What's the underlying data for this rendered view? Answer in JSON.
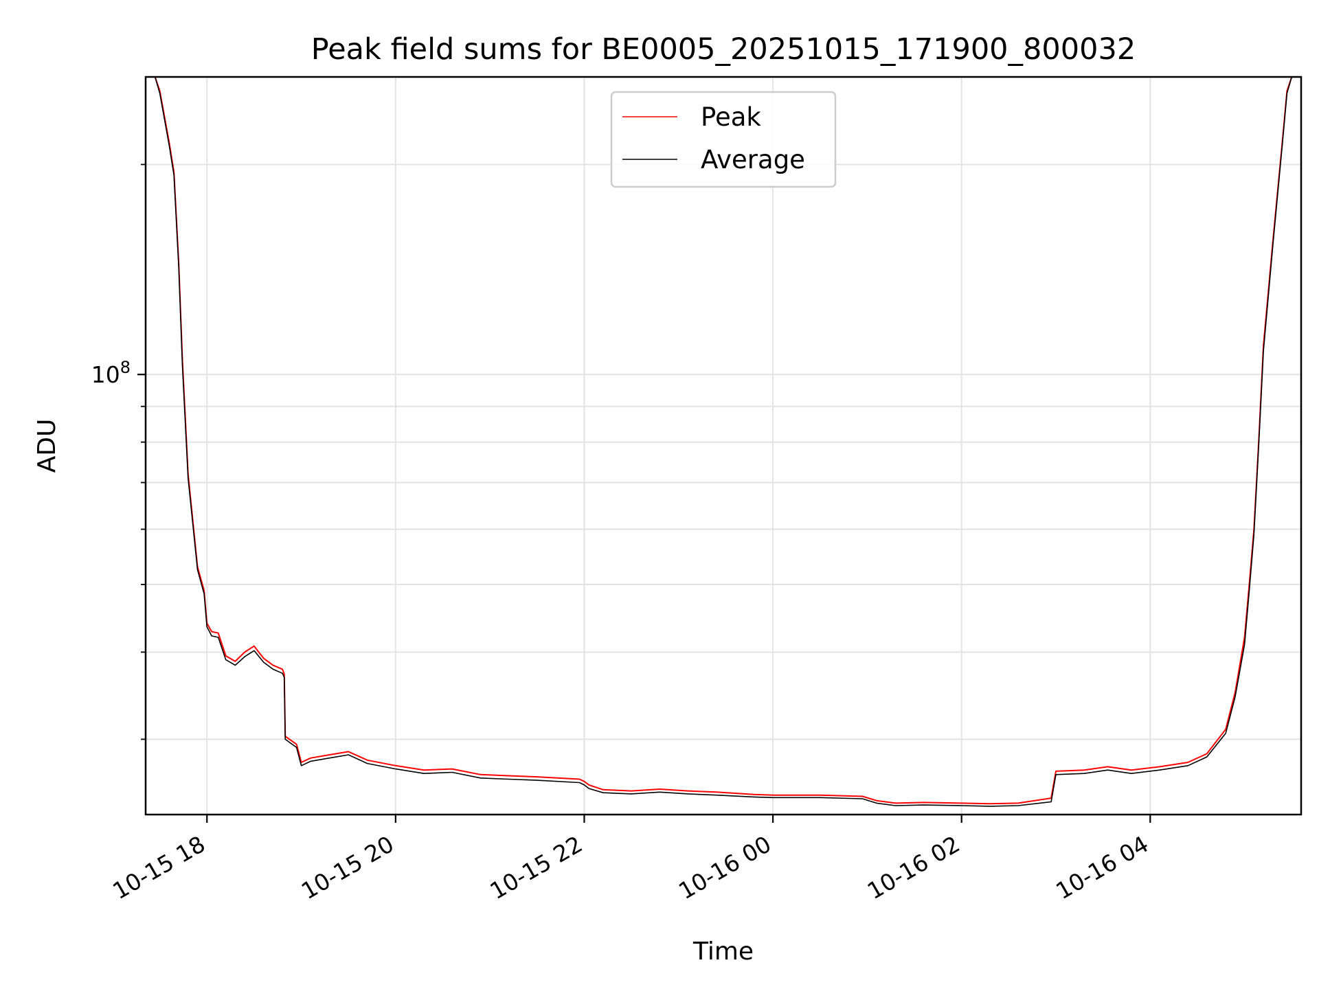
{
  "chart_data": {
    "type": "line",
    "title": "Peak field sums for BE0005_20251015_171900_800032",
    "xlabel": "Time",
    "ylabel": "ADU",
    "yscale": "log",
    "ylim": [
      23400000,
      267000000
    ],
    "xlim": [
      -0.65,
      11.6
    ],
    "x_tick_values": [
      0,
      2,
      4,
      6,
      8,
      10
    ],
    "x_tick_labels": [
      "10-15 18",
      "10-15 20",
      "10-15 22",
      "10-16 00",
      "10-16 02",
      "10-16 04"
    ],
    "y_major_tick_values": [
      100000000
    ],
    "y_major_tick_base": "10",
    "y_major_tick_exp": "8",
    "y_minor_tick_values": [
      30000000,
      40000000,
      50000000,
      60000000,
      70000000,
      80000000,
      90000000,
      200000000
    ],
    "x_unit": "hours since 10-15 18:00",
    "grid": true,
    "legend_position": "top-center",
    "series": [
      {
        "name": "Peak",
        "color": "#ff0000",
        "points": [
          [
            -0.55,
            267000000
          ],
          [
            -0.5,
            255000000
          ],
          [
            -0.4,
            215000000
          ],
          [
            -0.35,
            195000000
          ],
          [
            -0.3,
            145000000
          ],
          [
            -0.26,
            105000000
          ],
          [
            -0.2,
            72000000
          ],
          [
            -0.1,
            53000000
          ],
          [
            -0.03,
            49000000
          ],
          [
            0.0,
            44000000
          ],
          [
            0.05,
            42800000
          ],
          [
            0.12,
            42600000
          ],
          [
            0.2,
            39500000
          ],
          [
            0.3,
            38800000
          ],
          [
            0.4,
            40000000
          ],
          [
            0.5,
            40800000
          ],
          [
            0.6,
            39200000
          ],
          [
            0.7,
            38300000
          ],
          [
            0.8,
            37800000
          ],
          [
            0.82,
            37200000
          ],
          [
            0.83,
            30300000
          ],
          [
            0.95,
            29500000
          ],
          [
            1.0,
            27800000
          ],
          [
            1.1,
            28200000
          ],
          [
            1.3,
            28500000
          ],
          [
            1.5,
            28800000
          ],
          [
            1.7,
            28000000
          ],
          [
            2.0,
            27500000
          ],
          [
            2.3,
            27100000
          ],
          [
            2.6,
            27200000
          ],
          [
            2.9,
            26700000
          ],
          [
            3.2,
            26600000
          ],
          [
            3.5,
            26500000
          ],
          [
            3.95,
            26300000
          ],
          [
            4.0,
            26100000
          ],
          [
            4.05,
            25800000
          ],
          [
            4.2,
            25400000
          ],
          [
            4.5,
            25300000
          ],
          [
            4.8,
            25450000
          ],
          [
            5.1,
            25300000
          ],
          [
            5.4,
            25200000
          ],
          [
            5.8,
            25000000
          ],
          [
            6.0,
            24950000
          ],
          [
            6.5,
            24950000
          ],
          [
            6.95,
            24850000
          ],
          [
            7.1,
            24500000
          ],
          [
            7.3,
            24300000
          ],
          [
            7.6,
            24350000
          ],
          [
            8.0,
            24300000
          ],
          [
            8.3,
            24250000
          ],
          [
            8.6,
            24300000
          ],
          [
            8.95,
            24700000
          ],
          [
            9.0,
            27000000
          ],
          [
            9.3,
            27100000
          ],
          [
            9.55,
            27400000
          ],
          [
            9.8,
            27100000
          ],
          [
            10.1,
            27400000
          ],
          [
            10.4,
            27800000
          ],
          [
            10.6,
            28600000
          ],
          [
            10.8,
            31000000
          ],
          [
            10.9,
            35000000
          ],
          [
            11.0,
            42000000
          ],
          [
            11.05,
            50000000
          ],
          [
            11.1,
            60000000
          ],
          [
            11.15,
            80000000
          ],
          [
            11.2,
            110000000
          ],
          [
            11.3,
            155000000
          ],
          [
            11.4,
            215000000
          ],
          [
            11.45,
            255000000
          ],
          [
            11.5,
            267000000
          ],
          [
            11.6,
            267000000
          ]
        ]
      },
      {
        "name": "Average",
        "color": "#000000",
        "points": [
          [
            -0.55,
            267000000
          ],
          [
            -0.5,
            253000000
          ],
          [
            -0.4,
            213000000
          ],
          [
            -0.35,
            193000000
          ],
          [
            -0.3,
            143000000
          ],
          [
            -0.26,
            103000000
          ],
          [
            -0.2,
            71000000
          ],
          [
            -0.1,
            52500000
          ],
          [
            -0.03,
            48500000
          ],
          [
            0.0,
            43500000
          ],
          [
            0.05,
            42200000
          ],
          [
            0.12,
            42000000
          ],
          [
            0.2,
            39000000
          ],
          [
            0.3,
            38300000
          ],
          [
            0.4,
            39400000
          ],
          [
            0.5,
            40200000
          ],
          [
            0.6,
            38700000
          ],
          [
            0.7,
            37800000
          ],
          [
            0.8,
            37300000
          ],
          [
            0.82,
            36800000
          ],
          [
            0.83,
            30000000
          ],
          [
            0.95,
            29200000
          ],
          [
            1.0,
            27500000
          ],
          [
            1.1,
            27900000
          ],
          [
            1.3,
            28200000
          ],
          [
            1.5,
            28500000
          ],
          [
            1.7,
            27700000
          ],
          [
            2.0,
            27200000
          ],
          [
            2.3,
            26800000
          ],
          [
            2.6,
            26900000
          ],
          [
            2.9,
            26400000
          ],
          [
            3.2,
            26300000
          ],
          [
            3.5,
            26200000
          ],
          [
            3.95,
            26000000
          ],
          [
            4.0,
            25800000
          ],
          [
            4.05,
            25500000
          ],
          [
            4.2,
            25150000
          ],
          [
            4.5,
            25050000
          ],
          [
            4.8,
            25200000
          ],
          [
            5.1,
            25050000
          ],
          [
            5.4,
            24950000
          ],
          [
            5.8,
            24800000
          ],
          [
            6.0,
            24750000
          ],
          [
            6.5,
            24750000
          ],
          [
            6.95,
            24650000
          ],
          [
            7.1,
            24300000
          ],
          [
            7.3,
            24100000
          ],
          [
            7.6,
            24150000
          ],
          [
            8.0,
            24100000
          ],
          [
            8.3,
            24050000
          ],
          [
            8.6,
            24100000
          ],
          [
            8.95,
            24400000
          ],
          [
            9.0,
            26700000
          ],
          [
            9.3,
            26800000
          ],
          [
            9.55,
            27100000
          ],
          [
            9.8,
            26800000
          ],
          [
            10.1,
            27100000
          ],
          [
            10.4,
            27500000
          ],
          [
            10.6,
            28300000
          ],
          [
            10.8,
            30600000
          ],
          [
            10.9,
            34500000
          ],
          [
            11.0,
            41000000
          ],
          [
            11.05,
            49000000
          ],
          [
            11.1,
            59000000
          ],
          [
            11.15,
            79000000
          ],
          [
            11.2,
            108000000
          ],
          [
            11.3,
            153000000
          ],
          [
            11.4,
            213000000
          ],
          [
            11.45,
            253000000
          ],
          [
            11.5,
            267000000
          ],
          [
            11.6,
            267000000
          ]
        ]
      }
    ]
  }
}
